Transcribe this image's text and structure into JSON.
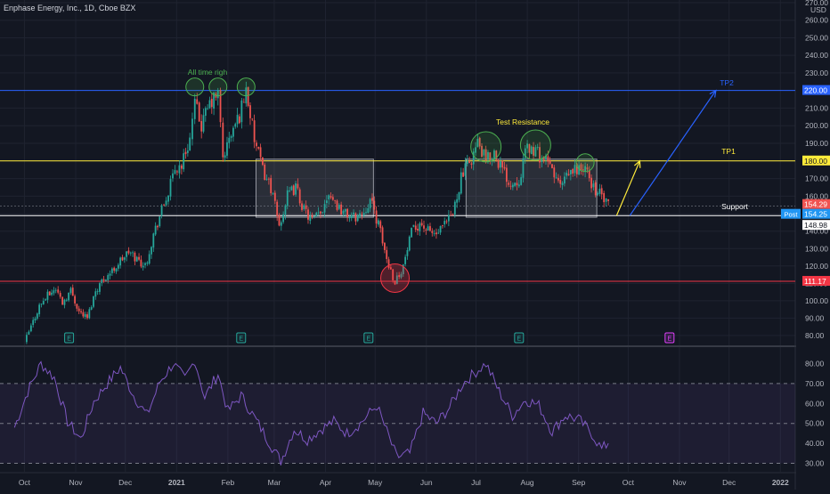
{
  "header": {
    "title": "Enphase Energy, Inc., 1D, Cboe BZX",
    "currency": "USD"
  },
  "colors": {
    "background": "#131722",
    "grid": "#1f2330",
    "up": "#26a69a",
    "down": "#ef5350",
    "rsi": "#7e57c2",
    "tp2_line": "#2962ff",
    "tp1_line": "#ffeb3b",
    "support_line": "#ffffff",
    "low_line": "#f23645"
  },
  "chart_data": [
    {
      "type": "candlestick",
      "ylim": [
        72,
        270
      ],
      "x_tick_labels": [
        "Oct",
        "Nov",
        "Dec",
        "2021",
        "Feb",
        "Mar",
        "Apr",
        "May",
        "Jun",
        "Jul",
        "Aug",
        "Sep",
        "Oct",
        "Nov",
        "Dec",
        "2022"
      ],
      "y_ticks": [
        80,
        90,
        100,
        110,
        120,
        130,
        140,
        150,
        160,
        170,
        180,
        190,
        200,
        210,
        220,
        230,
        240,
        250,
        260,
        270
      ],
      "y_tick_labels": [
        "80.00",
        "90.00",
        "100.00",
        "110.00",
        "120.00",
        "130.00",
        "140.00",
        "150.00",
        "160.00",
        "170.00",
        "180.00",
        "190.00",
        "200.00",
        "210.00",
        "220.00",
        "230.00",
        "240.00",
        "250.00",
        "260.00",
        "270.00"
      ],
      "price_path": [
        [
          "2020-10-01",
          76
        ],
        [
          "2020-10-05",
          85
        ],
        [
          "2020-10-10",
          97
        ],
        [
          "2020-10-15",
          103
        ],
        [
          "2020-10-20",
          107
        ],
        [
          "2020-10-24",
          99
        ],
        [
          "2020-10-29",
          106
        ],
        [
          "2020-11-03",
          94
        ],
        [
          "2020-11-08",
          90
        ],
        [
          "2020-11-13",
          106
        ],
        [
          "2020-11-18",
          113
        ],
        [
          "2020-11-23",
          117
        ],
        [
          "2020-11-28",
          123
        ],
        [
          "2020-12-03",
          128
        ],
        [
          "2020-12-08",
          124
        ],
        [
          "2020-12-13",
          120
        ],
        [
          "2020-12-18",
          138
        ],
        [
          "2020-12-23",
          152
        ],
        [
          "2020-12-27",
          162
        ],
        [
          "2020-12-31",
          175
        ],
        [
          "2021-01-04",
          178
        ],
        [
          "2021-01-09",
          193
        ],
        [
          "2021-01-12",
          212
        ],
        [
          "2021-01-16",
          200
        ],
        [
          "2021-01-21",
          212
        ],
        [
          "2021-01-26",
          218
        ],
        [
          "2021-01-29",
          182
        ],
        [
          "2021-02-03",
          195
        ],
        [
          "2021-02-08",
          206
        ],
        [
          "2021-02-12",
          221
        ],
        [
          "2021-02-17",
          192
        ],
        [
          "2021-02-22",
          175
        ],
        [
          "2021-02-27",
          165
        ],
        [
          "2021-03-04",
          143
        ],
        [
          "2021-03-09",
          160
        ],
        [
          "2021-03-14",
          165
        ],
        [
          "2021-03-19",
          152
        ],
        [
          "2021-03-24",
          146
        ],
        [
          "2021-03-29",
          150
        ],
        [
          "2021-04-03",
          163
        ],
        [
          "2021-04-08",
          155
        ],
        [
          "2021-04-13",
          150
        ],
        [
          "2021-04-18",
          148
        ],
        [
          "2021-04-23",
          150
        ],
        [
          "2021-04-28",
          158
        ],
        [
          "2021-05-03",
          144
        ],
        [
          "2021-05-08",
          124
        ],
        [
          "2021-05-13",
          111
        ],
        [
          "2021-05-18",
          120
        ],
        [
          "2021-05-23",
          139
        ],
        [
          "2021-05-28",
          145
        ],
        [
          "2021-06-02",
          140
        ],
        [
          "2021-06-07",
          138
        ],
        [
          "2021-06-12",
          143
        ],
        [
          "2021-06-17",
          150
        ],
        [
          "2021-06-22",
          171
        ],
        [
          "2021-06-27",
          179
        ],
        [
          "2021-07-02",
          190
        ],
        [
          "2021-07-07",
          180
        ],
        [
          "2021-07-12",
          185
        ],
        [
          "2021-07-17",
          175
        ],
        [
          "2021-07-22",
          167
        ],
        [
          "2021-07-27",
          170
        ],
        [
          "2021-08-01",
          188
        ],
        [
          "2021-08-06",
          185
        ],
        [
          "2021-08-11",
          181
        ],
        [
          "2021-08-16",
          175
        ],
        [
          "2021-08-21",
          165
        ],
        [
          "2021-08-26",
          172
        ],
        [
          "2021-08-31",
          176
        ],
        [
          "2021-09-05",
          175
        ],
        [
          "2021-09-10",
          165
        ],
        [
          "2021-09-15",
          160
        ],
        [
          "2021-09-19",
          154
        ]
      ],
      "levels": [
        {
          "name": "TP2",
          "price": 220.0,
          "label": "220.00"
        },
        {
          "name": "TP1",
          "price": 180.0,
          "label": "180.00"
        },
        {
          "name": "support",
          "price": 148.98,
          "label": "148.98"
        },
        {
          "name": "low",
          "price": 111.17,
          "label": "111.17"
        }
      ],
      "price_tags": [
        {
          "price": 154.29,
          "label": "154.29"
        },
        {
          "price": 154.25,
          "label": "154.25",
          "prefix": "Post"
        }
      ],
      "annotations": [
        {
          "text": "All time righ"
        },
        {
          "text": "Test Resistance"
        },
        {
          "text": "TP2"
        },
        {
          "text": "TP1"
        },
        {
          "text": "Support"
        }
      ],
      "consolidation_boxes": [
        {
          "from": "2021-02-18",
          "to": "2021-04-30",
          "top": 181,
          "bottom": 148
        },
        {
          "from": "2021-06-25",
          "to": "2021-09-12",
          "top": 181,
          "bottom": 148
        }
      ],
      "highlight_circles": [
        {
          "date": "2021-01-12",
          "price": 222,
          "color": "green"
        },
        {
          "date": "2021-01-26",
          "price": 222,
          "color": "green"
        },
        {
          "date": "2021-02-12",
          "price": 222,
          "color": "green"
        },
        {
          "date": "2021-07-07",
          "price": 188,
          "color": "green"
        },
        {
          "date": "2021-08-06",
          "price": 189,
          "color": "green"
        },
        {
          "date": "2021-09-05",
          "price": 179,
          "color": "green"
        },
        {
          "date": "2021-05-13",
          "price": 113,
          "color": "red"
        }
      ],
      "earnings_markers": [
        {
          "date": "2020-10-28",
          "label": "E"
        },
        {
          "date": "2021-02-09",
          "label": "E"
        },
        {
          "date": "2021-04-27",
          "label": "E"
        },
        {
          "date": "2021-07-27",
          "label": "E"
        },
        {
          "date": "2021-10-26",
          "label": "E",
          "future": true
        }
      ],
      "projection_arrows": [
        {
          "from": [
            "2021-09-24",
            149
          ],
          "to": [
            "2021-10-08",
            180
          ],
          "color": "yellow"
        },
        {
          "from": [
            "2021-10-02",
            149
          ],
          "to": [
            "2021-11-23",
            220
          ],
          "color": "blue"
        }
      ]
    },
    {
      "type": "line",
      "ylim": [
        27,
        87
      ],
      "y_ticks": [
        30,
        40,
        50,
        60,
        70,
        80
      ],
      "y_tick_labels": [
        "30.00",
        "40.00",
        "50.00",
        "60.00",
        "70.00",
        "80.00"
      ],
      "band": [
        30,
        70
      ],
      "rsi_path": [
        [
          "2020-09-25",
          48
        ],
        [
          "2020-10-03",
          66
        ],
        [
          "2020-10-11",
          80
        ],
        [
          "2020-10-19",
          73
        ],
        [
          "2020-10-27",
          51
        ],
        [
          "2020-11-04",
          42
        ],
        [
          "2020-11-12",
          61
        ],
        [
          "2020-11-20",
          70
        ],
        [
          "2020-11-28",
          78
        ],
        [
          "2020-12-06",
          64
        ],
        [
          "2020-12-14",
          54
        ],
        [
          "2020-12-22",
          71
        ],
        [
          "2020-12-30",
          80
        ],
        [
          "2021-01-06",
          72
        ],
        [
          "2021-01-12",
          82
        ],
        [
          "2021-01-18",
          63
        ],
        [
          "2021-01-26",
          75
        ],
        [
          "2021-02-01",
          56
        ],
        [
          "2021-02-09",
          64
        ],
        [
          "2021-02-17",
          53
        ],
        [
          "2021-02-25",
          42
        ],
        [
          "2021-03-05",
          31
        ],
        [
          "2021-03-13",
          47
        ],
        [
          "2021-03-21",
          42
        ],
        [
          "2021-03-29",
          47
        ],
        [
          "2021-04-06",
          51
        ],
        [
          "2021-04-14",
          45
        ],
        [
          "2021-04-22",
          50
        ],
        [
          "2021-05-02",
          59
        ],
        [
          "2021-05-08",
          46
        ],
        [
          "2021-05-14",
          33
        ],
        [
          "2021-05-22",
          35
        ],
        [
          "2021-05-30",
          55
        ],
        [
          "2021-06-07",
          50
        ],
        [
          "2021-06-15",
          58
        ],
        [
          "2021-06-23",
          70
        ],
        [
          "2021-07-01",
          76
        ],
        [
          "2021-07-07",
          80
        ],
        [
          "2021-07-15",
          66
        ],
        [
          "2021-07-23",
          54
        ],
        [
          "2021-07-31",
          62
        ],
        [
          "2021-08-08",
          59
        ],
        [
          "2021-08-16",
          46
        ],
        [
          "2021-08-24",
          54
        ],
        [
          "2021-09-01",
          52
        ],
        [
          "2021-09-09",
          45
        ],
        [
          "2021-09-15",
          37
        ],
        [
          "2021-09-19",
          40
        ]
      ]
    }
  ]
}
